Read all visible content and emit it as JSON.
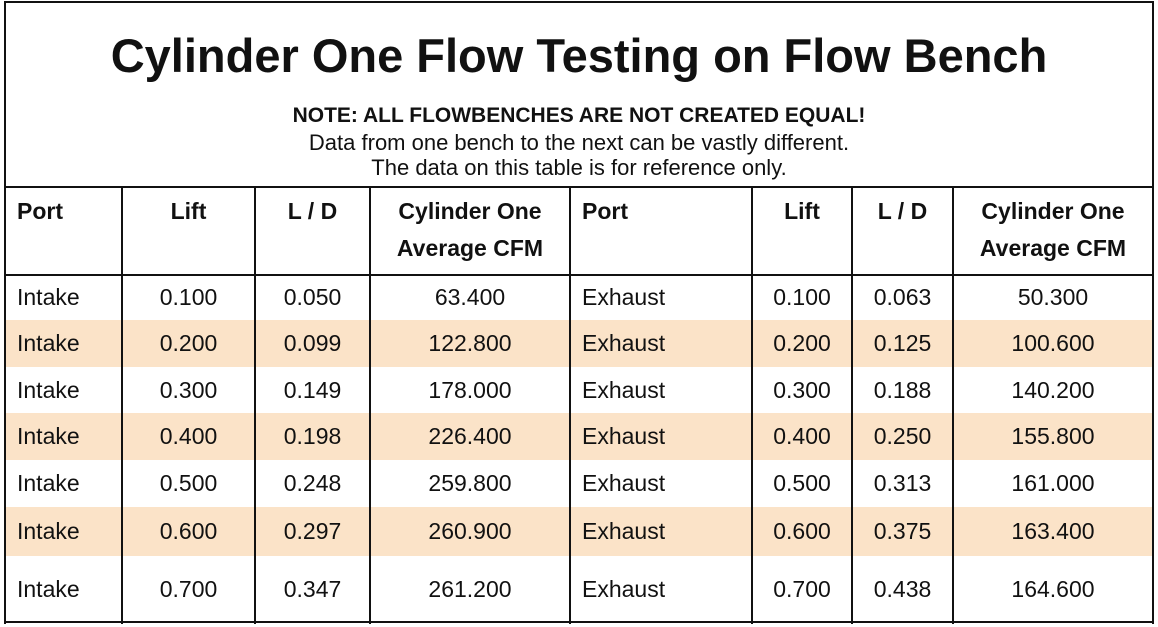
{
  "header": {
    "title": "Cylinder One Flow Testing on Flow Bench",
    "note": "NOTE: ALL FLOWBENCHES ARE NOT CREATED EQUAL!",
    "lines": [
      "Data from one bench to the next can be vastly different.",
      "The data on this table is for reference only."
    ]
  },
  "table": {
    "columns": [
      [
        "Port"
      ],
      [
        "Lift"
      ],
      [
        "L / D"
      ],
      [
        "Cylinder One",
        "Average CFM"
      ],
      [
        "Port"
      ],
      [
        "Lift"
      ],
      [
        "L / D"
      ],
      [
        "Cylinder One",
        "Average CFM"
      ]
    ],
    "rows": [
      [
        "Intake",
        "0.100",
        "0.050",
        "63.400",
        "Exhaust",
        "0.100",
        "0.063",
        "50.300"
      ],
      [
        "Intake",
        "0.200",
        "0.099",
        "122.800",
        "Exhaust",
        "0.200",
        "0.125",
        "100.600"
      ],
      [
        "Intake",
        "0.300",
        "0.149",
        "178.000",
        "Exhaust",
        "0.300",
        "0.188",
        "140.200"
      ],
      [
        "Intake",
        "0.400",
        "0.198",
        "226.400",
        "Exhaust",
        "0.400",
        "0.250",
        "155.800"
      ],
      [
        "Intake",
        "0.500",
        "0.248",
        "259.800",
        "Exhaust",
        "0.500",
        "0.313",
        "161.000"
      ],
      [
        "Intake",
        "0.600",
        "0.297",
        "260.900",
        "Exhaust",
        "0.600",
        "0.375",
        "163.400"
      ],
      [
        "Intake",
        "0.700",
        "0.347",
        "261.200",
        "Exhaust",
        "0.700",
        "0.438",
        "164.600"
      ]
    ]
  }
}
